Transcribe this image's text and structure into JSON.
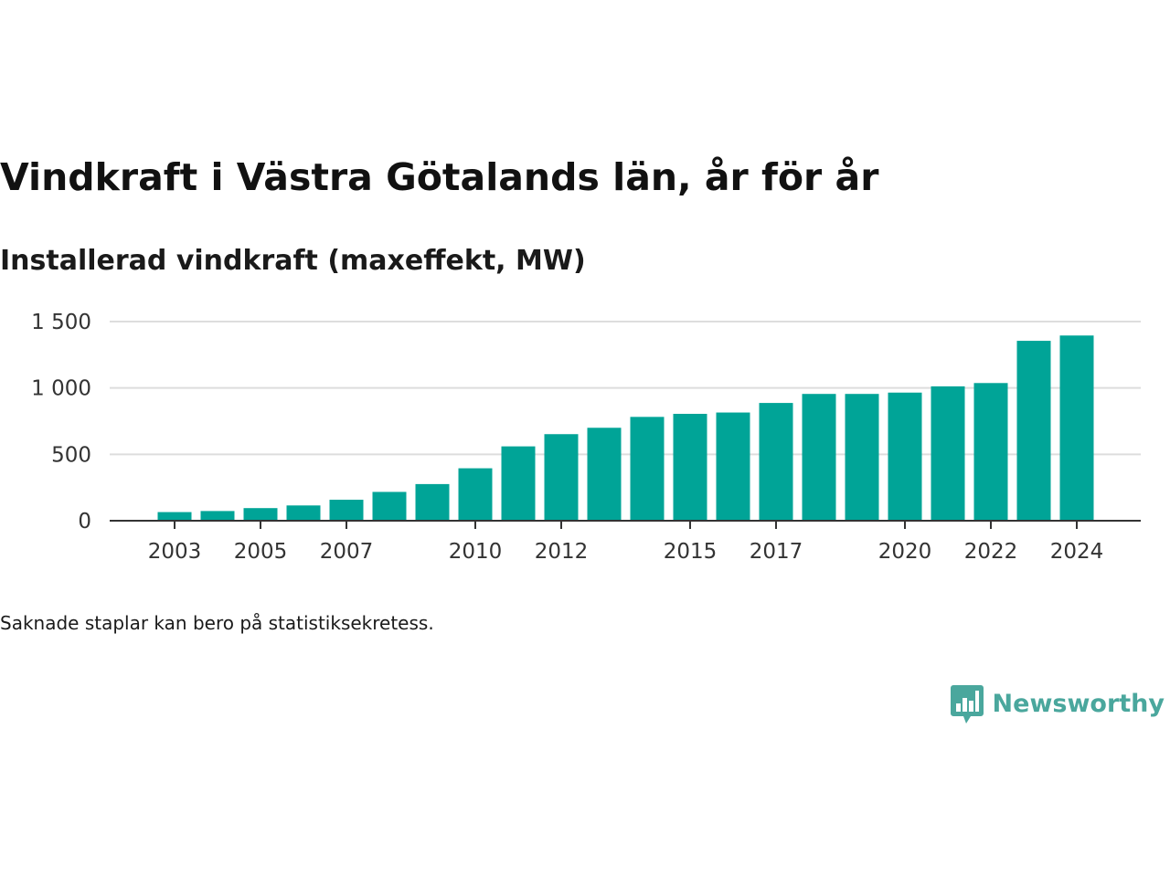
{
  "title": "Vindkraft i Västra Götalands län, år för år",
  "subtitle": "Installerad vindkraft (maxeffekt, MW)",
  "footnote": "Saknade staplar kan bero på statistiksekretess.",
  "brand": {
    "name": "Newsworthy",
    "color": "#4aa79d",
    "icon": "bar-chart-speech-bubble-icon"
  },
  "colors": {
    "bar": "#00a497",
    "grid": "#dddddd",
    "axis": "#333333",
    "text": "#333333"
  },
  "chart_data": {
    "type": "bar",
    "categories": [
      "2003",
      "2004",
      "2005",
      "2006",
      "2007",
      "2008",
      "2009",
      "2010",
      "2011",
      "2012",
      "2013",
      "2014",
      "2015",
      "2016",
      "2017",
      "2018",
      "2019",
      "2020",
      "2021",
      "2022",
      "2023",
      "2024"
    ],
    "x_tick_labels": [
      "2003",
      "2005",
      "2007",
      "2010",
      "2012",
      "2015",
      "2017",
      "2020",
      "2022",
      "2024"
    ],
    "values": [
      65,
      73,
      95,
      115,
      158,
      217,
      276,
      395,
      560,
      652,
      700,
      782,
      805,
      815,
      887,
      955,
      955,
      965,
      1012,
      1037,
      1355,
      1395
    ],
    "ylim": [
      0,
      1500
    ],
    "yticks": [
      0,
      500,
      1000,
      1500
    ],
    "ytick_labels": [
      "0",
      "500",
      "1 000",
      "1 500"
    ],
    "title": "Vindkraft i Västra Götalands län, år för år",
    "ylabel": "Installerad vindkraft (maxeffekt, MW)",
    "xlabel": "",
    "grid": true,
    "legend": "none"
  }
}
